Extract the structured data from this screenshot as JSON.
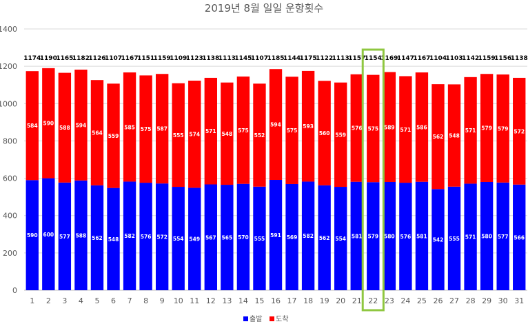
{
  "chart_data": {
    "type": "bar",
    "stacked": true,
    "title": "2019년 8월 일일 운항횟수",
    "xlabel": "",
    "ylabel": "",
    "ylim": [
      0,
      1400
    ],
    "yticks": [
      0,
      200,
      400,
      600,
      800,
      1000,
      1200,
      1400
    ],
    "grid": true,
    "legend_position": "bottom",
    "categories": [
      "1",
      "2",
      "3",
      "4",
      "5",
      "6",
      "7",
      "8",
      "9",
      "10",
      "11",
      "12",
      "13",
      "14",
      "15",
      "16",
      "17",
      "18",
      "19",
      "20",
      "21",
      "22",
      "23",
      "24",
      "25",
      "26",
      "27",
      "28",
      "29",
      "30",
      "31"
    ],
    "series": [
      {
        "name": "출발",
        "color": "#0000ff",
        "values": [
          590,
          600,
          577,
          588,
          562,
          548,
          582,
          576,
          572,
          554,
          549,
          567,
          565,
          570,
          555,
          591,
          569,
          582,
          562,
          554,
          581,
          579,
          580,
          576,
          581,
          542,
          555,
          571,
          580,
          577,
          566
        ]
      },
      {
        "name": "도착",
        "color": "#ff0000",
        "values": [
          584,
          590,
          588,
          594,
          564,
          559,
          585,
          575,
          587,
          555,
          574,
          571,
          548,
          575,
          552,
          594,
          575,
          593,
          560,
          559,
          576,
          575,
          589,
          571,
          586,
          562,
          548,
          571,
          579,
          579,
          572
        ]
      }
    ],
    "totals": [
      1174,
      1190,
      1165,
      1182,
      1126,
      1107,
      1167,
      1151,
      1159,
      1109,
      1123,
      1138,
      1113,
      1145,
      1107,
      1185,
      1144,
      1175,
      1122,
      1113,
      1157,
      1154,
      1169,
      1147,
      1167,
      1104,
      1103,
      1142,
      1159,
      1156,
      1138
    ],
    "highlight_category": "22",
    "highlight_color": "#8fc740"
  }
}
